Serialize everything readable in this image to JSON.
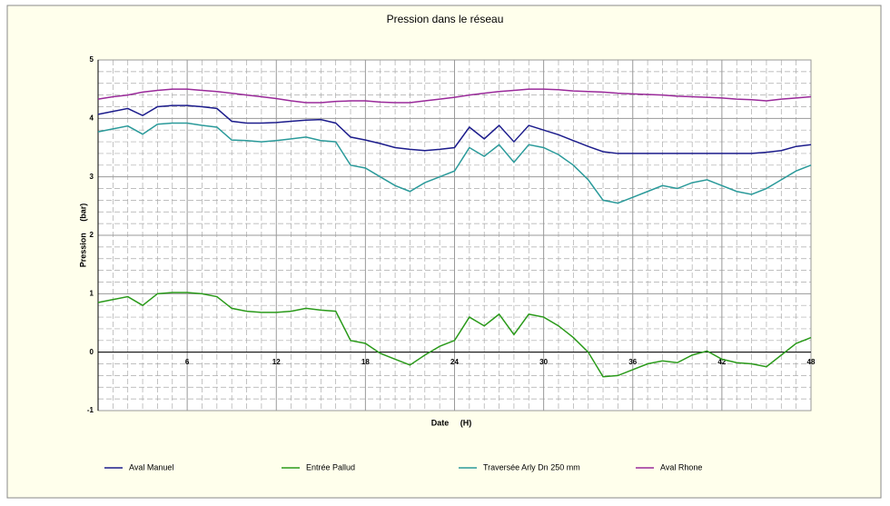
{
  "chart_data": {
    "type": "line",
    "title": "Pression dans le réseau",
    "x_label": "Date     (H)",
    "y_label": "Pression     (bar)",
    "x": [
      0,
      1,
      2,
      3,
      4,
      5,
      6,
      7,
      8,
      9,
      10,
      11,
      12,
      13,
      14,
      15,
      16,
      17,
      18,
      19,
      20,
      21,
      22,
      23,
      24,
      25,
      26,
      27,
      28,
      29,
      30,
      31,
      32,
      33,
      34,
      35,
      36,
      37,
      38,
      39,
      40,
      41,
      42,
      43,
      44,
      45,
      46,
      47,
      48
    ],
    "series": [
      {
        "name": "Aval Manuel",
        "color": "#1c1c8c",
        "values": [
          4.07,
          4.12,
          4.17,
          4.05,
          4.2,
          4.22,
          4.22,
          4.2,
          4.17,
          3.95,
          3.92,
          3.92,
          3.93,
          3.95,
          3.97,
          3.98,
          3.92,
          3.68,
          3.63,
          3.57,
          3.5,
          3.47,
          3.45,
          3.47,
          3.5,
          3.85,
          3.65,
          3.88,
          3.6,
          3.88,
          3.8,
          3.72,
          3.62,
          3.52,
          3.43,
          3.4,
          3.4,
          3.4,
          3.4,
          3.4,
          3.4,
          3.4,
          3.4,
          3.4,
          3.4,
          3.42,
          3.45,
          3.52,
          3.55
        ]
      },
      {
        "name": "Entrée Pallud",
        "color": "#2a9a1a",
        "values": [
          0.85,
          0.9,
          0.95,
          0.8,
          1.0,
          1.02,
          1.02,
          1.0,
          0.95,
          0.75,
          0.7,
          0.68,
          0.68,
          0.7,
          0.75,
          0.72,
          0.7,
          0.2,
          0.15,
          -0.02,
          -0.12,
          -0.22,
          -0.05,
          0.1,
          0.2,
          0.6,
          0.45,
          0.65,
          0.3,
          0.65,
          0.6,
          0.45,
          0.25,
          0.0,
          -0.42,
          -0.4,
          -0.3,
          -0.2,
          -0.15,
          -0.18,
          -0.05,
          0.02,
          -0.12,
          -0.18,
          -0.2,
          -0.25,
          -0.05,
          0.15,
          0.25
        ]
      },
      {
        "name": "Traversée Arly Dn 250 mm",
        "color": "#2a9a9a",
        "values": [
          3.77,
          3.82,
          3.87,
          3.73,
          3.9,
          3.92,
          3.92,
          3.88,
          3.85,
          3.63,
          3.62,
          3.6,
          3.62,
          3.65,
          3.68,
          3.62,
          3.6,
          3.2,
          3.15,
          3.0,
          2.85,
          2.75,
          2.9,
          3.0,
          3.1,
          3.5,
          3.35,
          3.55,
          3.25,
          3.55,
          3.5,
          3.38,
          3.2,
          2.95,
          2.6,
          2.55,
          2.65,
          2.75,
          2.85,
          2.8,
          2.9,
          2.95,
          2.85,
          2.75,
          2.7,
          2.8,
          2.95,
          3.1,
          3.2
        ]
      },
      {
        "name": "Aval Rhone",
        "color": "#9a2a9a",
        "values": [
          4.33,
          4.37,
          4.4,
          4.45,
          4.48,
          4.5,
          4.5,
          4.48,
          4.46,
          4.43,
          4.4,
          4.37,
          4.34,
          4.3,
          4.27,
          4.27,
          4.29,
          4.3,
          4.3,
          4.28,
          4.27,
          4.27,
          4.3,
          4.33,
          4.36,
          4.4,
          4.43,
          4.46,
          4.48,
          4.5,
          4.5,
          4.49,
          4.47,
          4.46,
          4.45,
          4.43,
          4.42,
          4.41,
          4.4,
          4.38,
          4.37,
          4.36,
          4.35,
          4.33,
          4.32,
          4.3,
          4.33,
          4.35,
          4.37
        ]
      }
    ],
    "xlim": [
      0,
      48
    ],
    "xticks": [
      6,
      12,
      18,
      24,
      30,
      36,
      42,
      48
    ],
    "ylim": [
      -1,
      5
    ],
    "yticks": [
      -1,
      0,
      1,
      2,
      3,
      4,
      5
    ],
    "grid": true,
    "minor_grid": {
      "x": 6,
      "y": 5
    },
    "legend": "bottom"
  }
}
